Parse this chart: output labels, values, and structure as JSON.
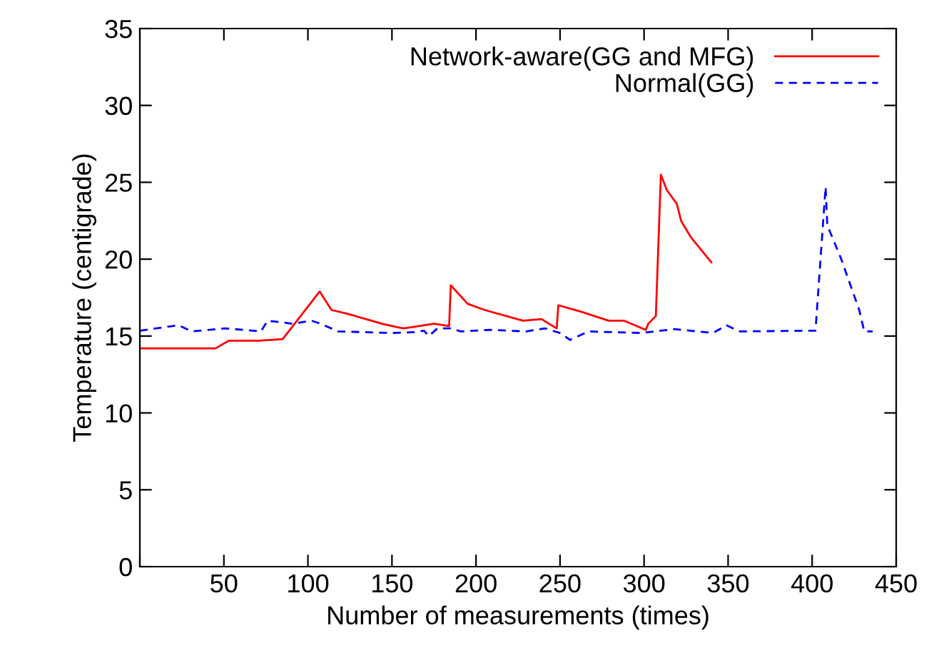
{
  "chart_data": {
    "type": "line",
    "xlabel": "Number of measurements (times)",
    "ylabel": "Temperature (centigrade)",
    "xlim": [
      0,
      450
    ],
    "xticks": [
      {
        "value": 0,
        "label": null
      },
      50,
      100,
      150,
      200,
      250,
      300,
      350,
      400,
      450
    ],
    "ylim": [
      0,
      35
    ],
    "yticks": [
      0,
      5,
      10,
      15,
      20,
      25,
      30,
      35
    ],
    "grid": false,
    "legend": "top right",
    "marker": "none",
    "series": [
      {
        "name": "Network-aware(GG and MFG)",
        "color": "#ff0000",
        "line_style": "solid",
        "x": [
          0,
          20,
          45,
          53,
          71,
          85,
          107,
          114,
          125,
          144,
          152,
          157,
          175,
          184,
          185,
          195,
          205,
          228,
          239,
          248,
          249,
          262,
          279,
          288,
          301,
          302.5,
          307,
          310,
          313.5,
          319.5,
          322,
          328,
          340
        ],
        "values": [
          14.2,
          14.2,
          14.2,
          14.7,
          14.7,
          14.8,
          17.9,
          16.7,
          16.4,
          15.8,
          15.6,
          15.5,
          15.8,
          15.65,
          18.3,
          17.1,
          16.7,
          16.0,
          16.1,
          15.5,
          17.0,
          16.6,
          16.0,
          16.0,
          15.4,
          15.8,
          16.3,
          25.5,
          24.5,
          23.6,
          22.5,
          21.4,
          19.8
        ]
      },
      {
        "name": "Normal(GG)",
        "color": "#0000ff",
        "line_style": "dashed",
        "x": [
          0,
          23,
          31,
          51,
          72,
          76,
          91,
          102,
          107.6,
          118,
          150,
          163,
          169,
          172,
          177,
          185,
          191,
          208,
          230,
          241,
          250,
          256,
          267,
          298,
          318,
          341,
          349,
          357,
          402,
          408,
          409,
          417,
          428,
          431,
          436
        ],
        "values": [
          15.35,
          15.7,
          15.3,
          15.5,
          15.3,
          16.0,
          15.8,
          16.0,
          15.8,
          15.3,
          15.2,
          15.25,
          15.35,
          15.0,
          15.5,
          15.5,
          15.3,
          15.4,
          15.3,
          15.5,
          15.2,
          14.75,
          15.3,
          15.2,
          15.45,
          15.2,
          15.7,
          15.3,
          15.35,
          24.7,
          22.2,
          20.1,
          16.7,
          15.3,
          15.3
        ]
      }
    ]
  }
}
